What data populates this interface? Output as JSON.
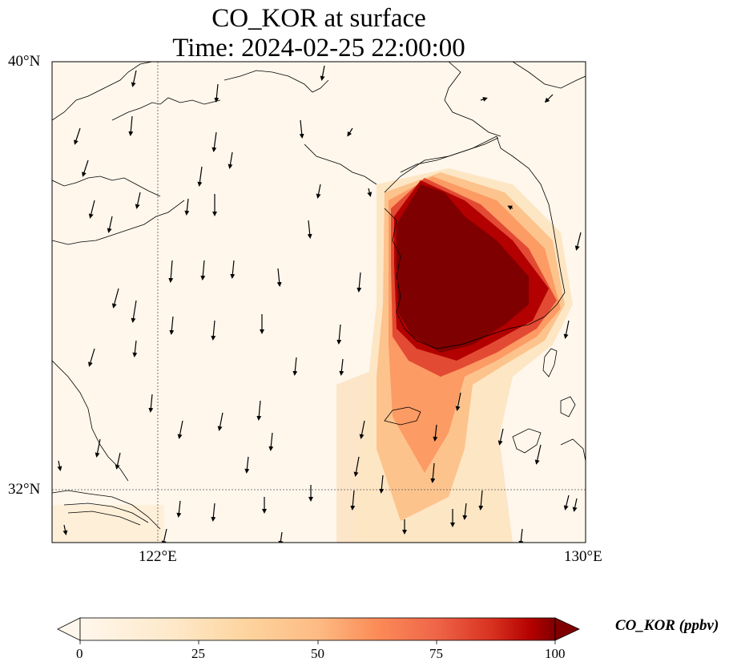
{
  "title": {
    "line1": "CO_KOR at surface",
    "line2": "Time: 2024-02-25 22:00:00"
  },
  "axes": {
    "lat_labels": [
      "40°N",
      "32°N"
    ],
    "lon_labels": [
      "122°E",
      "130°E"
    ],
    "lat_range": [
      31,
      40
    ],
    "lon_range": [
      120,
      130
    ]
  },
  "colorbar": {
    "label": "CO_KOR (ppbv)",
    "ticks": [
      "0",
      "25",
      "50",
      "75",
      "100"
    ],
    "range": [
      0,
      100
    ],
    "colormap": "OrRd",
    "extend": "both"
  },
  "colors": {
    "low": "#fff7ec",
    "mid": "#fdbb84",
    "high": "#7f0000"
  },
  "map_content": {
    "field": "CO_KOR",
    "level": "surface",
    "units": "ppbv",
    "plume_region": "Korean Peninsula, spreading south over Jeju and the East China Sea",
    "wind_direction": "northerly"
  }
}
